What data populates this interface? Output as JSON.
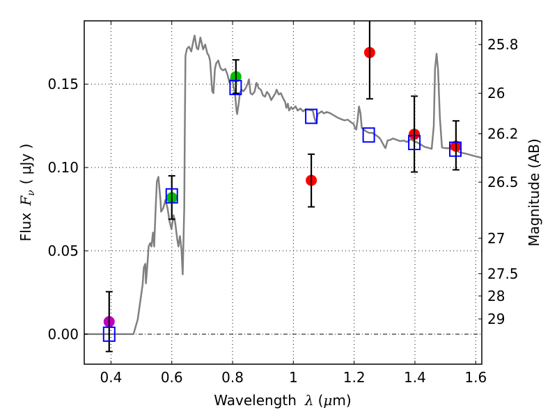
{
  "chart_data": {
    "type": "scatter",
    "title": "",
    "xlabel": "Wavelength",
    "xlabel_symbol": "λ",
    "xlabel_unit_prefix": "(",
    "xlabel_unit_mu": "μ",
    "xlabel_unit_suffix": "m)",
    "ylabel": "Flux",
    "ylabel_symbol": "F",
    "ylabel_subscript": "ν",
    "ylabel_unit": "( μJy )",
    "ylabel_right": "Magnitude (AB)",
    "xlim": [
      0.312,
      1.62
    ],
    "ylim": [
      -0.018,
      0.188
    ],
    "grid": true,
    "x_ticks": [
      {
        "value": 0.4,
        "label": "0.4"
      },
      {
        "value": 0.6,
        "label": "0.6"
      },
      {
        "value": 0.8,
        "label": "0.8"
      },
      {
        "value": 1.0,
        "label": "1"
      },
      {
        "value": 1.2,
        "label": "1.2"
      },
      {
        "value": 1.4,
        "label": "1.4"
      },
      {
        "value": 1.6,
        "label": "1.6"
      }
    ],
    "y_ticks": [
      {
        "value": 0.0,
        "label": "0.00"
      },
      {
        "value": 0.05,
        "label": "0.05"
      },
      {
        "value": 0.1,
        "label": "0.10"
      },
      {
        "value": 0.15,
        "label": "0.15"
      }
    ],
    "right_ticks": [
      {
        "mag": 25.8,
        "label": "25.8"
      },
      {
        "mag": 26,
        "label": "26"
      },
      {
        "mag": 26.2,
        "label": "26.2"
      },
      {
        "mag": 26.5,
        "label": "26.5"
      },
      {
        "mag": 27,
        "label": "27"
      },
      {
        "mag": 27.5,
        "label": "27.5"
      },
      {
        "mag": 28,
        "label": "28"
      },
      {
        "mag": 29,
        "label": "29"
      }
    ],
    "mag_zeropoint": 23.9,
    "colors": {
      "model": "#808080",
      "model_photometry": "#0000ff",
      "errorbar": "#000000",
      "zero_line": "#000000"
    },
    "series": [
      {
        "name": "model_spectrum",
        "kind": "line",
        "color": "#808080",
        "points": [
          [
            0.312,
            0.0
          ],
          [
            0.47,
            0.0
          ],
          [
            0.474,
            0.0
          ],
          [
            0.488,
            0.0088
          ],
          [
            0.504,
            0.0296
          ],
          [
            0.508,
            0.0401
          ],
          [
            0.513,
            0.0422
          ],
          [
            0.515,
            0.0305
          ],
          [
            0.519,
            0.0401
          ],
          [
            0.524,
            0.0526
          ],
          [
            0.529,
            0.0547
          ],
          [
            0.533,
            0.0526
          ],
          [
            0.538,
            0.061
          ],
          [
            0.542,
            0.0526
          ],
          [
            0.547,
            0.0758
          ],
          [
            0.551,
            0.0915
          ],
          [
            0.556,
            0.0944
          ],
          [
            0.563,
            0.0798
          ],
          [
            0.565,
            0.0735
          ],
          [
            0.572,
            0.0756
          ],
          [
            0.579,
            0.0806
          ],
          [
            0.586,
            0.0756
          ],
          [
            0.593,
            0.0673
          ],
          [
            0.599,
            0.0631
          ],
          [
            0.606,
            0.0714
          ],
          [
            0.611,
            0.0673
          ],
          [
            0.618,
            0.0568
          ],
          [
            0.622,
            0.0526
          ],
          [
            0.627,
            0.0589
          ],
          [
            0.632,
            0.0505
          ],
          [
            0.636,
            0.0359
          ],
          [
            0.641,
            0.0752
          ],
          [
            0.643,
            0.1253
          ],
          [
            0.645,
            0.1671
          ],
          [
            0.65,
            0.1713
          ],
          [
            0.657,
            0.1725
          ],
          [
            0.664,
            0.1696
          ],
          [
            0.671,
            0.1759
          ],
          [
            0.675,
            0.1792
          ],
          [
            0.682,
            0.1717
          ],
          [
            0.687,
            0.1709
          ],
          [
            0.694,
            0.178
          ],
          [
            0.698,
            0.175
          ],
          [
            0.703,
            0.1709
          ],
          [
            0.71,
            0.1738
          ],
          [
            0.717,
            0.1684
          ],
          [
            0.721,
            0.1675
          ],
          [
            0.726,
            0.1642
          ],
          [
            0.733,
            0.1458
          ],
          [
            0.737,
            0.1446
          ],
          [
            0.742,
            0.1592
          ],
          [
            0.746,
            0.1625
          ],
          [
            0.753,
            0.1642
          ],
          [
            0.758,
            0.1608
          ],
          [
            0.762,
            0.1592
          ],
          [
            0.769,
            0.1583
          ],
          [
            0.776,
            0.1592
          ],
          [
            0.783,
            0.1558
          ],
          [
            0.79,
            0.1508
          ],
          [
            0.797,
            0.155
          ],
          [
            0.803,
            0.1487
          ],
          [
            0.808,
            0.1446
          ],
          [
            0.813,
            0.1342
          ],
          [
            0.815,
            0.1321
          ],
          [
            0.82,
            0.1383
          ],
          [
            0.824,
            0.1446
          ],
          [
            0.829,
            0.1467
          ],
          [
            0.836,
            0.1458
          ],
          [
            0.843,
            0.1475
          ],
          [
            0.849,
            0.15
          ],
          [
            0.854,
            0.1529
          ],
          [
            0.859,
            0.1446
          ],
          [
            0.865,
            0.1438
          ],
          [
            0.872,
            0.1454
          ],
          [
            0.879,
            0.1508
          ],
          [
            0.886,
            0.1475
          ],
          [
            0.893,
            0.1467
          ],
          [
            0.9,
            0.1433
          ],
          [
            0.907,
            0.1425
          ],
          [
            0.913,
            0.1454
          ],
          [
            0.92,
            0.1438
          ],
          [
            0.927,
            0.1404
          ],
          [
            0.934,
            0.1425
          ],
          [
            0.941,
            0.1446
          ],
          [
            0.945,
            0.1467
          ],
          [
            0.952,
            0.1438
          ],
          [
            0.959,
            0.1446
          ],
          [
            0.966,
            0.1417
          ],
          [
            0.973,
            0.1392
          ],
          [
            0.977,
            0.1358
          ],
          [
            0.982,
            0.1383
          ],
          [
            0.986,
            0.1342
          ],
          [
            0.993,
            0.1362
          ],
          [
            0.998,
            0.135
          ],
          [
            1.007,
            0.1367
          ],
          [
            1.014,
            0.1342
          ],
          [
            1.023,
            0.1354
          ],
          [
            1.032,
            0.1337
          ],
          [
            1.041,
            0.135
          ],
          [
            1.053,
            0.1346
          ],
          [
            1.064,
            0.1342
          ],
          [
            1.068,
            0.1307
          ],
          [
            1.075,
            0.1266
          ],
          [
            1.08,
            0.1321
          ],
          [
            1.087,
            0.1329
          ],
          [
            1.093,
            0.1337
          ],
          [
            1.1,
            0.1325
          ],
          [
            1.11,
            0.1333
          ],
          [
            1.122,
            0.1325
          ],
          [
            1.134,
            0.1312
          ],
          [
            1.145,
            0.13
          ],
          [
            1.156,
            0.1291
          ],
          [
            1.168,
            0.1283
          ],
          [
            1.179,
            0.1287
          ],
          [
            1.191,
            0.127
          ],
          [
            1.198,
            0.1262
          ],
          [
            1.202,
            0.1241
          ],
          [
            1.207,
            0.1228
          ],
          [
            1.211,
            0.1283
          ],
          [
            1.216,
            0.1366
          ],
          [
            1.221,
            0.1325
          ],
          [
            1.225,
            0.1237
          ],
          [
            1.237,
            0.122
          ],
          [
            1.248,
            0.1208
          ],
          [
            1.26,
            0.1208
          ],
          [
            1.271,
            0.1195
          ],
          [
            1.283,
            0.1178
          ],
          [
            1.289,
            0.1162
          ],
          [
            1.296,
            0.1137
          ],
          [
            1.303,
            0.1116
          ],
          [
            1.31,
            0.1162
          ],
          [
            1.319,
            0.1166
          ],
          [
            1.328,
            0.1174
          ],
          [
            1.34,
            0.1166
          ],
          [
            1.351,
            0.1158
          ],
          [
            1.363,
            0.1162
          ],
          [
            1.374,
            0.1153
          ],
          [
            1.386,
            0.117
          ],
          [
            1.397,
            0.1158
          ],
          [
            1.409,
            0.1149
          ],
          [
            1.42,
            0.1137
          ],
          [
            1.432,
            0.1124
          ],
          [
            1.448,
            0.1116
          ],
          [
            1.455,
            0.1112
          ],
          [
            1.462,
            0.1249
          ],
          [
            1.466,
            0.1591
          ],
          [
            1.471,
            0.1683
          ],
          [
            1.476,
            0.1591
          ],
          [
            1.482,
            0.1299
          ],
          [
            1.489,
            0.112
          ],
          [
            1.501,
            0.1116
          ],
          [
            1.512,
            0.1116
          ],
          [
            1.524,
            0.1107
          ],
          [
            1.535,
            0.1103
          ],
          [
            1.547,
            0.1091
          ],
          [
            1.57,
            0.1082
          ],
          [
            1.593,
            0.107
          ],
          [
            1.62,
            0.1058
          ]
        ]
      },
      {
        "name": "model_photometry",
        "kind": "open_square",
        "color": "#0000ff",
        "points": [
          {
            "x": 0.394,
            "y": 0.0
          },
          {
            "x": 0.6,
            "y": 0.083
          },
          {
            "x": 0.81,
            "y": 0.148
          },
          {
            "x": 1.059,
            "y": 0.1307
          },
          {
            "x": 1.248,
            "y": 0.1195
          },
          {
            "x": 1.398,
            "y": 0.115
          },
          {
            "x": 1.533,
            "y": 0.111
          }
        ]
      },
      {
        "name": "observed_blue",
        "kind": "filled_circle_errorbar",
        "color": "#bf00bf",
        "points": [
          {
            "x": 0.394,
            "y": 0.0075,
            "err_low": -0.0104,
            "err_high": 0.0255
          }
        ]
      },
      {
        "name": "observed_optical",
        "kind": "filled_circle_errorbar",
        "color": "#00bf00",
        "points": [
          {
            "x": 0.6,
            "y": 0.0819,
            "err_low": 0.069,
            "err_high": 0.095
          },
          {
            "x": 0.811,
            "y": 0.1545,
            "err_low": 0.1445,
            "err_high": 0.1646
          }
        ]
      },
      {
        "name": "observed_infrared",
        "kind": "filled_circle_errorbar",
        "color": "#ff0000",
        "points": [
          {
            "x": 1.059,
            "y": 0.0923,
            "err_low": 0.0764,
            "err_high": 0.108
          },
          {
            "x": 1.251,
            "y": 0.169,
            "err_low": 0.1412,
            "err_high": 0.195
          },
          {
            "x": 1.398,
            "y": 0.12,
            "err_low": 0.0973,
            "err_high": 0.1428
          },
          {
            "x": 1.535,
            "y": 0.1128,
            "err_low": 0.0986,
            "err_high": 0.128
          }
        ]
      }
    ]
  }
}
